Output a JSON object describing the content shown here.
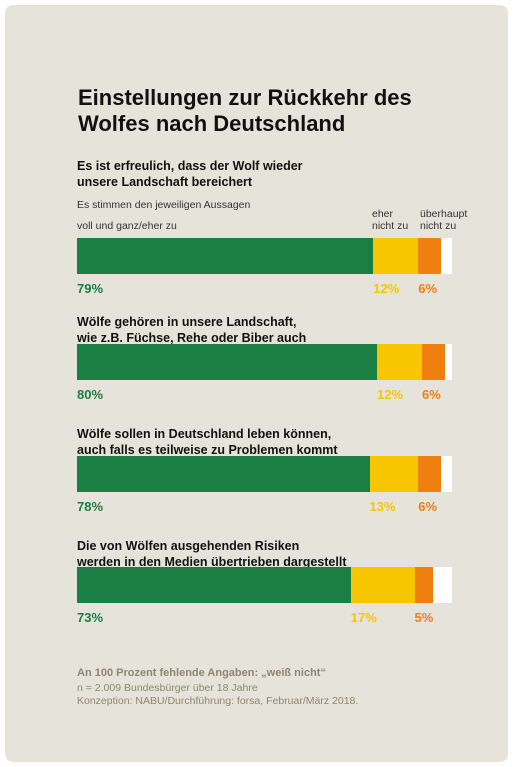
{
  "title": "Einstellungen zur Rückkehr des Wolfes nach Deutschland",
  "subtitle": "Es stimmen den jeweiligen Aussagen",
  "legend": {
    "voll": "voll und ganz/eher zu",
    "eher_nicht_line1": "eher",
    "eher_nicht_line2": "nicht zu",
    "ueberhaupt_line1": "überhaupt",
    "ueberhaupt_line2": "nicht zu"
  },
  "colors": {
    "voll": "#1a7f43",
    "eher_nicht": "#f7c600",
    "ueberhaupt": "#ef7f0f",
    "missing": "#ffffff"
  },
  "chart_data": {
    "type": "bar",
    "orientation": "horizontal-stacked",
    "categories": [
      "Es ist erfreulich, dass der Wolf wieder unsere Landschaft bereichert",
      "Wölfe gehören in unsere Landschaft, wie z.B. Füchse, Rehe oder Biber auch",
      "Wölfe sollen in Deutschland leben können, auch falls es teilweise zu Problemen kommt",
      "Die von Wölfen ausgehenden Risiken werden in den Medien übertrieben dargestellt"
    ],
    "category_lines": [
      [
        "Es ist erfreulich, dass der Wolf wieder",
        "unsere Landschaft bereichert"
      ],
      [
        "Wölfe gehören in unsere Landschaft,",
        "wie z.B. Füchse, Rehe oder Biber auch"
      ],
      [
        "Wölfe sollen in Deutschland leben können,",
        "auch falls es teilweise zu Problemen kommt"
      ],
      [
        "Die von Wölfen ausgehenden Risiken",
        "werden in den Medien übertrieben dargestellt"
      ]
    ],
    "series": [
      {
        "name": "voll und ganz/eher zu",
        "values": [
          79,
          80,
          78,
          73
        ]
      },
      {
        "name": "eher nicht zu",
        "values": [
          12,
          12,
          13,
          17
        ]
      },
      {
        "name": "überhaupt nicht zu",
        "values": [
          6,
          6,
          6,
          5
        ]
      }
    ],
    "labels": [
      [
        "79%",
        "12%",
        "6%"
      ],
      [
        "80%",
        "12%",
        "6%"
      ],
      [
        "78%",
        "13%",
        "6%"
      ],
      [
        "73%",
        "17%",
        "5%"
      ]
    ],
    "xlim": [
      0,
      100
    ]
  },
  "footer": {
    "note": "An 100 Prozent fehlende Angaben: „weiß nicht“",
    "sample": "n = 2.009 Bundesbürger über 18 Jahre",
    "credit": "Konzeption: NABU/Durchführung: forsa, Februar/März 2018."
  }
}
